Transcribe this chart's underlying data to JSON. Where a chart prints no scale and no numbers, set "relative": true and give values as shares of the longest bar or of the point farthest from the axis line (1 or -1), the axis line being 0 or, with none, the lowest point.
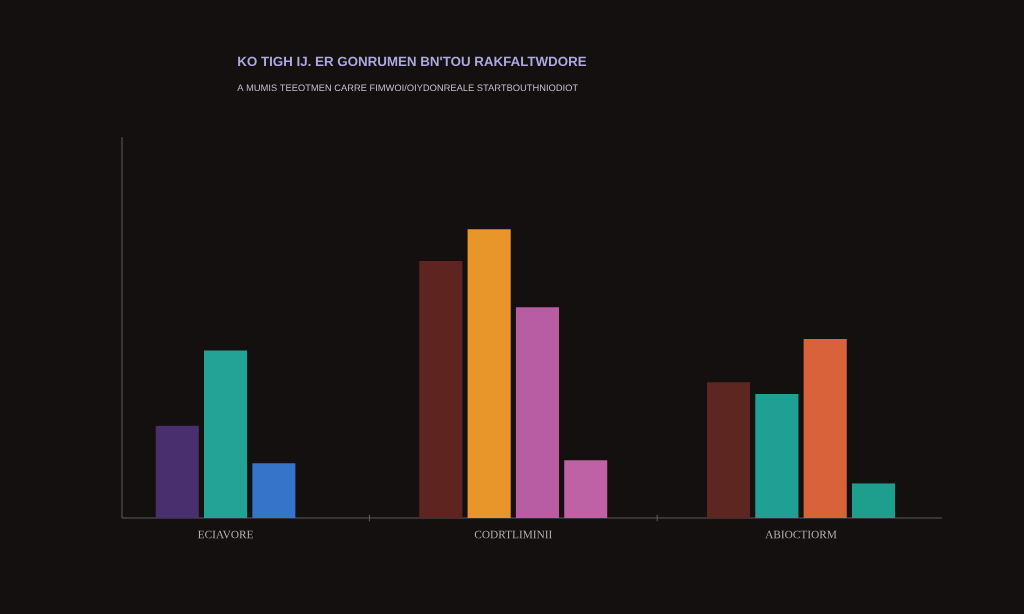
{
  "chart_data": {
    "type": "bar",
    "relative": true,
    "title": "KO TIGH IJ.  ER GONRUMEN BN'TOU RAKFALTWDORE",
    "subtitle": "A MUMIS TEEOTMEN CARRE FIMWOI/OIYDONREALE STARTBOUTHNIODIOT",
    "categories": [
      "ECIAVORE",
      "CODRTLIMINII",
      "ABIOCTIORM"
    ],
    "series": [
      {
        "colors": [
          "#4a2f6e",
          "#5e2420",
          "#5e2621"
        ],
        "values": [
          0.32,
          0.89,
          0.47
        ]
      },
      {
        "colors": [
          "#22a396",
          "#e8962a",
          "#20a094"
        ],
        "values": [
          0.58,
          1,
          0.43
        ]
      },
      {
        "colors": [
          "#3574c9",
          "#b85ca3",
          "#d9623a"
        ],
        "values": [
          0.19,
          0.73,
          0.62
        ]
      },
      {
        "colors": [
          null,
          "#bf62a5",
          "#1e9e8c"
        ],
        "values": [
          null,
          0.2,
          0.12
        ]
      }
    ]
  }
}
